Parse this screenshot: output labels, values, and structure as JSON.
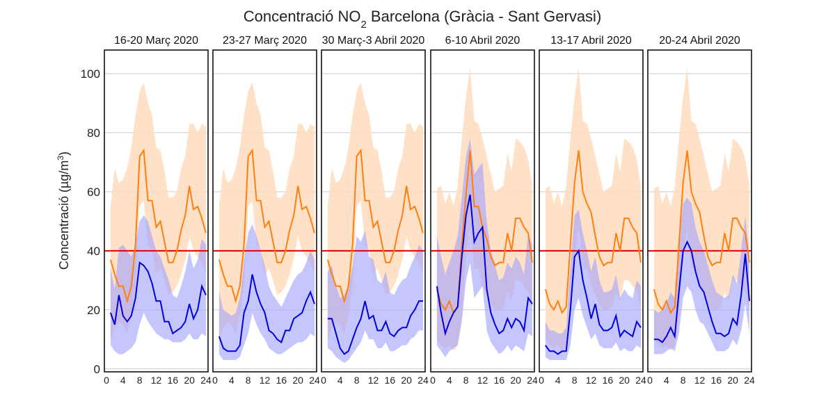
{
  "chart_data": {
    "type": "line",
    "title": "Concentració NO₂ Barcelona (Gràcia - Sant Gervasi)",
    "ylabel": "Concentració (µg/m³)",
    "ylim": [
      -1,
      108
    ],
    "xlim": [
      -0.5,
      24.5
    ],
    "yticks": [
      0,
      20,
      40,
      60,
      80,
      100
    ],
    "xticks": [
      0,
      4,
      8,
      12,
      16,
      20,
      24
    ],
    "grid": true,
    "limit_line": {
      "y": 40,
      "color": "#dd0000"
    },
    "colors": {
      "historical": "#ff7f0e",
      "historical_band": "#ffdcbd",
      "current": "#0000dd",
      "current_band": "#a0a0ff"
    },
    "panels": [
      {
        "title": "16-20 Març 2020",
        "x": [
          1,
          2,
          3,
          4,
          5,
          6,
          7,
          8,
          9,
          10,
          11,
          12,
          13,
          14,
          15,
          16,
          17,
          18,
          19,
          20,
          21,
          22,
          23,
          24
        ],
        "orange": [
          37,
          32,
          28,
          28,
          23,
          28,
          42,
          72,
          74,
          57,
          57,
          48,
          50,
          43,
          36,
          36,
          40,
          47,
          52,
          62,
          54,
          55,
          51,
          46
        ],
        "orange_band": {
          "low": [
            10,
            14,
            16,
            15,
            12,
            18,
            28,
            55,
            57,
            42,
            40,
            32,
            34,
            30,
            25,
            26,
            28,
            32,
            37,
            45,
            40,
            38,
            36,
            32
          ],
          "high": [
            55,
            68,
            63,
            64,
            68,
            75,
            86,
            94,
            97,
            90,
            86,
            75,
            74,
            67,
            58,
            58,
            60,
            68,
            72,
            83,
            83,
            80,
            83,
            82
          ]
        },
        "blue": [
          19,
          15,
          25,
          18,
          16,
          18,
          24,
          36,
          35,
          33,
          29,
          23,
          23,
          16,
          16,
          12,
          13,
          14,
          16,
          22,
          17,
          20,
          28,
          25
        ],
        "blue_band": {
          "low": [
            8,
            6,
            5,
            5,
            6,
            7,
            9,
            15,
            19,
            16,
            14,
            12,
            11,
            10,
            10,
            9,
            9,
            9,
            10,
            12,
            10,
            10,
            12,
            11
          ],
          "high": [
            34,
            27,
            41,
            42,
            40,
            38,
            42,
            50,
            52,
            50,
            45,
            40,
            38,
            34,
            30,
            25,
            24,
            28,
            33,
            40,
            34,
            37,
            44,
            42
          ]
        }
      },
      {
        "title": "23-27 Març 2020",
        "x": [
          1,
          2,
          3,
          4,
          5,
          6,
          7,
          8,
          9,
          10,
          11,
          12,
          13,
          14,
          15,
          16,
          17,
          18,
          19,
          20,
          21,
          22,
          23,
          24
        ],
        "orange": [
          37,
          32,
          28,
          28,
          23,
          28,
          42,
          72,
          74,
          57,
          57,
          48,
          50,
          43,
          36,
          36,
          40,
          47,
          52,
          62,
          54,
          55,
          51,
          46
        ],
        "orange_band": {
          "low": [
            10,
            14,
            16,
            15,
            12,
            18,
            28,
            55,
            57,
            42,
            40,
            32,
            34,
            30,
            25,
            26,
            28,
            32,
            37,
            45,
            40,
            38,
            36,
            32
          ],
          "high": [
            55,
            68,
            63,
            64,
            68,
            75,
            86,
            94,
            97,
            90,
            86,
            75,
            74,
            67,
            58,
            58,
            60,
            68,
            72,
            83,
            83,
            80,
            83,
            82
          ]
        },
        "blue": [
          11,
          7,
          6,
          6,
          6,
          8,
          19,
          23,
          32,
          26,
          22,
          19,
          13,
          12,
          10,
          9,
          13,
          13,
          17,
          18,
          19,
          23,
          26,
          22
        ],
        "blue_band": {
          "low": [
            5,
            3,
            3,
            3,
            3,
            4,
            8,
            12,
            19,
            15,
            12,
            10,
            7,
            6,
            5,
            5,
            6,
            7,
            8,
            9,
            9,
            10,
            12,
            11
          ],
          "high": [
            26,
            20,
            19,
            18,
            19,
            24,
            37,
            46,
            49,
            45,
            40,
            35,
            28,
            25,
            23,
            21,
            24,
            27,
            30,
            32,
            33,
            36,
            40,
            37
          ]
        }
      },
      {
        "title": "30 Març-3 Abril 2020",
        "x": [
          1,
          2,
          3,
          4,
          5,
          6,
          7,
          8,
          9,
          10,
          11,
          12,
          13,
          14,
          15,
          16,
          17,
          18,
          19,
          20,
          21,
          22,
          23,
          24
        ],
        "orange": [
          37,
          32,
          28,
          28,
          23,
          28,
          42,
          72,
          74,
          57,
          57,
          48,
          50,
          43,
          36,
          36,
          40,
          47,
          52,
          62,
          54,
          55,
          51,
          46
        ],
        "orange_band": {
          "low": [
            10,
            14,
            16,
            15,
            12,
            18,
            28,
            55,
            57,
            42,
            40,
            32,
            34,
            30,
            25,
            26,
            28,
            32,
            37,
            45,
            40,
            38,
            36,
            32
          ],
          "high": [
            55,
            68,
            63,
            64,
            68,
            75,
            86,
            94,
            97,
            90,
            86,
            75,
            74,
            67,
            58,
            58,
            60,
            68,
            72,
            83,
            83,
            80,
            83,
            82
          ]
        },
        "blue": [
          17,
          17,
          12,
          7,
          5,
          6,
          10,
          14,
          17,
          23,
          17,
          18,
          13,
          13,
          16,
          12,
          11,
          13,
          14,
          14,
          18,
          20,
          23,
          23
        ],
        "blue_band": {
          "low": [
            7,
            6,
            4,
            3,
            2,
            3,
            5,
            7,
            9,
            13,
            10,
            10,
            7,
            7,
            9,
            6,
            6,
            7,
            8,
            8,
            10,
            11,
            13,
            13
          ],
          "high": [
            33,
            35,
            28,
            24,
            25,
            28,
            35,
            45,
            43,
            47,
            38,
            37,
            30,
            29,
            33,
            26,
            25,
            28,
            30,
            31,
            35,
            38,
            42,
            40
          ]
        }
      },
      {
        "title": "6-10 Abril 2020",
        "x": [
          1,
          2,
          3,
          4,
          5,
          6,
          7,
          8,
          9,
          10,
          11,
          12,
          13,
          14,
          15,
          16,
          17,
          18,
          19,
          20,
          21,
          22,
          23,
          24
        ],
        "orange": [
          27,
          22,
          20,
          23,
          19,
          21,
          42,
          59,
          74,
          55,
          55,
          48,
          44,
          38,
          35,
          36,
          36,
          46,
          40,
          51,
          51,
          48,
          46,
          36
        ],
        "orange_band": {
          "low": [
            10,
            8,
            7,
            8,
            6,
            8,
            18,
            38,
            48,
            34,
            34,
            28,
            25,
            22,
            20,
            20,
            21,
            26,
            23,
            30,
            30,
            28,
            26,
            20
          ],
          "high": [
            61,
            62,
            56,
            60,
            55,
            62,
            78,
            92,
            102,
            84,
            83,
            78,
            72,
            66,
            60,
            61,
            62,
            73,
            67,
            78,
            77,
            75,
            71,
            62
          ]
        },
        "blue": [
          28,
          19,
          12,
          16,
          19,
          21,
          38,
          52,
          59,
          43,
          46,
          48,
          27,
          19,
          15,
          12,
          13,
          17,
          14,
          17,
          16,
          13,
          24,
          22
        ],
        "blue_band": {
          "low": [
            8,
            6,
            4,
            6,
            7,
            8,
            16,
            30,
            36,
            24,
            26,
            28,
            13,
            9,
            7,
            5,
            6,
            8,
            6,
            8,
            7,
            6,
            12,
            11
          ],
          "high": [
            45,
            38,
            32,
            36,
            40,
            45,
            58,
            72,
            78,
            66,
            68,
            70,
            50,
            40,
            35,
            30,
            31,
            36,
            34,
            38,
            36,
            32,
            46,
            42
          ]
        }
      },
      {
        "title": "13-17 Abril 2020",
        "x": [
          1,
          2,
          3,
          4,
          5,
          6,
          7,
          8,
          9,
          10,
          11,
          12,
          13,
          14,
          15,
          16,
          17,
          18,
          19,
          20,
          21,
          22,
          23,
          24
        ],
        "orange": [
          27,
          22,
          20,
          23,
          19,
          21,
          42,
          63,
          74,
          60,
          56,
          53,
          45,
          38,
          35,
          36,
          36,
          46,
          40,
          51,
          51,
          48,
          46,
          36
        ],
        "orange_band": {
          "low": [
            10,
            8,
            7,
            8,
            6,
            8,
            18,
            38,
            48,
            34,
            34,
            28,
            25,
            22,
            20,
            20,
            21,
            26,
            23,
            30,
            30,
            28,
            26,
            20
          ],
          "high": [
            61,
            62,
            56,
            60,
            55,
            62,
            78,
            92,
            102,
            84,
            83,
            78,
            72,
            66,
            60,
            61,
            62,
            73,
            67,
            78,
            77,
            75,
            71,
            62
          ]
        },
        "blue": [
          8,
          6,
          6,
          5,
          6,
          6,
          20,
          38,
          40,
          30,
          24,
          17,
          22,
          15,
          13,
          13,
          14,
          18,
          11,
          13,
          12,
          11,
          16,
          14
        ],
        "blue_band": {
          "low": [
            4,
            3,
            3,
            3,
            3,
            3,
            8,
            20,
            24,
            18,
            14,
            10,
            12,
            8,
            7,
            7,
            7,
            9,
            6,
            7,
            6,
            6,
            8,
            7
          ],
          "high": [
            16,
            13,
            13,
            12,
            12,
            14,
            35,
            52,
            54,
            46,
            40,
            33,
            38,
            30,
            26,
            26,
            27,
            32,
            24,
            27,
            25,
            24,
            30,
            28
          ]
        }
      },
      {
        "title": "20-24 Abril 2020",
        "x": [
          1,
          2,
          3,
          4,
          5,
          6,
          7,
          8,
          9,
          10,
          11,
          12,
          13,
          14,
          15,
          16,
          17,
          18,
          19,
          20,
          21,
          22,
          23,
          24
        ],
        "orange": [
          27,
          22,
          20,
          23,
          19,
          21,
          42,
          63,
          74,
          60,
          56,
          53,
          45,
          38,
          35,
          36,
          36,
          46,
          40,
          51,
          51,
          48,
          46,
          36
        ],
        "orange_band": {
          "low": [
            10,
            8,
            7,
            8,
            6,
            8,
            18,
            38,
            48,
            34,
            34,
            28,
            25,
            22,
            20,
            20,
            21,
            26,
            23,
            30,
            30,
            28,
            26,
            20
          ],
          "high": [
            61,
            62,
            56,
            60,
            55,
            62,
            78,
            92,
            102,
            84,
            83,
            78,
            72,
            66,
            60,
            61,
            62,
            73,
            67,
            78,
            77,
            75,
            71,
            62
          ]
        },
        "blue": [
          10,
          10,
          9,
          11,
          14,
          11,
          26,
          40,
          43,
          40,
          33,
          28,
          26,
          21,
          16,
          12,
          12,
          11,
          12,
          17,
          15,
          25,
          39,
          23
        ],
        "blue_band": {
          "low": [
            5,
            5,
            5,
            6,
            7,
            6,
            12,
            24,
            28,
            26,
            20,
            16,
            15,
            12,
            9,
            6,
            6,
            6,
            7,
            10,
            8,
            13,
            22,
            12
          ],
          "high": [
            20,
            19,
            20,
            22,
            26,
            24,
            42,
            56,
            58,
            56,
            48,
            43,
            40,
            35,
            30,
            26,
            25,
            24,
            25,
            32,
            29,
            40,
            52,
            38
          ]
        }
      }
    ]
  }
}
